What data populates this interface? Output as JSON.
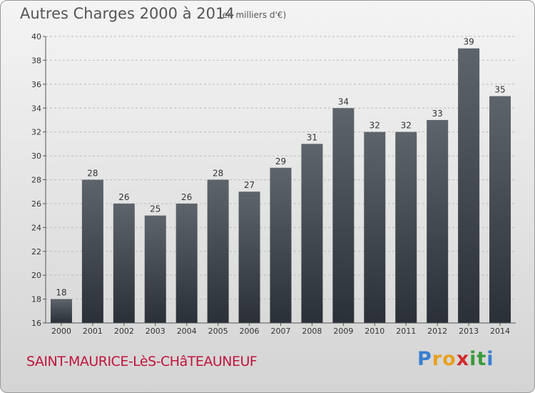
{
  "header": {
    "title": "Autres Charges 2000 à 2014",
    "subtitle": "(en milliers d'€)"
  },
  "footer": {
    "city": "SAINT-MAURICE-LèS-CHâTEAUNEUF",
    "logo_letters": [
      {
        "char": "P",
        "color": "#3a7fd0"
      },
      {
        "char": "r",
        "color": "#e8a020"
      },
      {
        "char": "o",
        "color": "#e8a020"
      },
      {
        "char": "x",
        "color": "#d12a2a"
      },
      {
        "char": "i",
        "color": "#3a9a3a"
      },
      {
        "char": "t",
        "color": "#3a9a3a"
      },
      {
        "char": "i",
        "color": "#3a7fd0"
      }
    ]
  },
  "chart_data": {
    "type": "bar",
    "title": "Autres Charges 2000 à 2014",
    "subtitle": "(en milliers d'€)",
    "categories": [
      "2000",
      "2001",
      "2002",
      "2003",
      "2004",
      "2005",
      "2006",
      "2007",
      "2008",
      "2009",
      "2010",
      "2011",
      "2012",
      "2013",
      "2014"
    ],
    "values": [
      18,
      28,
      26,
      25,
      26,
      28,
      27,
      29,
      31,
      34,
      32,
      32,
      33,
      39,
      35
    ],
    "ylim": [
      16,
      40
    ],
    "yticks": [
      16,
      18,
      20,
      22,
      24,
      26,
      28,
      30,
      32,
      34,
      36,
      38,
      40
    ],
    "grid": true,
    "bar_color_top": "#5e646c",
    "bar_color_bottom": "#2b3038"
  }
}
